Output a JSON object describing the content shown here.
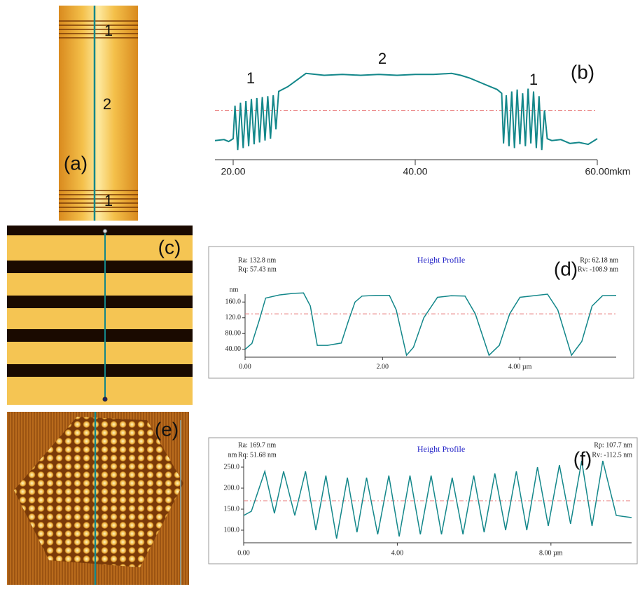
{
  "panels": {
    "a": {
      "label": "(a)",
      "annotations": [
        "1",
        "2",
        "1"
      ]
    },
    "c": {
      "label": "(c)"
    },
    "e": {
      "label": "(e)"
    }
  },
  "chart_data": [
    {
      "type": "line",
      "label": "(b)",
      "annotations": [
        "1",
        "2",
        "1"
      ],
      "xlabel": "mkm",
      "xlim": [
        18,
        60
      ],
      "ylim": [
        0,
        100
      ],
      "xticks": [
        {
          "value": 20,
          "label": "20.00"
        },
        {
          "value": 40,
          "label": "40.00"
        },
        {
          "value": 60,
          "label": "60.00"
        }
      ],
      "reference_line": 50,
      "color": "#13878a",
      "x": [
        18,
        19,
        19.5,
        20,
        20.2,
        20.5,
        20.8,
        21.1,
        21.4,
        21.7,
        22,
        22.3,
        22.6,
        22.9,
        23.2,
        23.5,
        23.8,
        24.1,
        24.4,
        24.7,
        25,
        26,
        27,
        28,
        30,
        32,
        34,
        36,
        38,
        40,
        42,
        44,
        45,
        46,
        47,
        48,
        49,
        49.5,
        49.7,
        50,
        50.3,
        50.6,
        50.9,
        51.2,
        51.5,
        51.8,
        52.1,
        52.4,
        52.7,
        53,
        53.3,
        53.6,
        53.9,
        54.2,
        54.5,
        55,
        56,
        57,
        58,
        59,
        59.5,
        60
      ],
      "values": [
        18,
        19,
        17,
        20,
        55,
        8,
        58,
        10,
        60,
        12,
        62,
        14,
        63,
        16,
        64,
        18,
        65,
        20,
        66,
        30,
        70,
        75,
        82,
        89,
        87,
        88,
        87,
        88,
        87,
        88,
        88,
        89,
        87,
        84,
        80,
        76,
        72,
        68,
        15,
        66,
        12,
        70,
        10,
        72,
        14,
        68,
        12,
        73,
        15,
        70,
        10,
        65,
        8,
        50,
        20,
        18,
        19,
        15,
        16,
        14,
        17,
        20
      ]
    },
    {
      "type": "line",
      "label": "(d)",
      "title": "Height Profile",
      "stats": [
        "Ra: 132.8 nm",
        "Rq: 57.43 nm",
        "Rp: 62.18 nm",
        "Rv: -108.9 nm"
      ],
      "ylabel": "nm",
      "xlim": [
        0,
        5.4
      ],
      "ylim": [
        20,
        180
      ],
      "xticks": [
        {
          "value": 0,
          "label": "0.00"
        },
        {
          "value": 2,
          "label": "2.00"
        },
        {
          "value": 4,
          "label": "4.00 µm"
        }
      ],
      "yticks": [
        {
          "value": 40,
          "label": "40.00"
        },
        {
          "value": 80,
          "label": "80.00"
        },
        {
          "value": 120,
          "label": "120.0"
        },
        {
          "value": 160,
          "label": "160.0"
        }
      ],
      "reference_line": 130,
      "color": "#13878a",
      "x": [
        0,
        0.1,
        0.2,
        0.3,
        0.5,
        0.7,
        0.85,
        0.95,
        1.05,
        1.2,
        1.4,
        1.5,
        1.6,
        1.7,
        1.9,
        2.1,
        2.2,
        2.35,
        2.45,
        2.6,
        2.8,
        3.0,
        3.2,
        3.35,
        3.55,
        3.7,
        3.85,
        4.0,
        4.2,
        4.4,
        4.55,
        4.75,
        4.9,
        5.05,
        5.2,
        5.4
      ],
      "values": [
        40,
        55,
        110,
        170,
        178,
        182,
        183,
        150,
        50,
        50,
        56,
        110,
        160,
        175,
        177,
        177,
        140,
        25,
        45,
        120,
        172,
        176,
        175,
        130,
        25,
        50,
        130,
        172,
        176,
        180,
        140,
        25,
        60,
        150,
        176,
        177
      ]
    },
    {
      "type": "line",
      "label": "(f)",
      "title": "Height Profile",
      "stats": [
        "Ra: 169.7 nm",
        "Rq: 51.68 nm",
        "Rp: 107.7 nm",
        "Rv: -112.5 nm"
      ],
      "ylabel": "nm",
      "xlim": [
        0,
        10.1
      ],
      "ylim": [
        70,
        270
      ],
      "xticks": [
        {
          "value": 0,
          "label": "0.00"
        },
        {
          "value": 4,
          "label": "4.00"
        },
        {
          "value": 8,
          "label": "8.00 µm"
        }
      ],
      "yticks": [
        {
          "value": 100,
          "label": "100.0"
        },
        {
          "value": 150,
          "label": "150.0"
        },
        {
          "value": 200,
          "label": "200.0"
        },
        {
          "value": 250,
          "label": "250.0"
        }
      ],
      "reference_line": 170,
      "color": "#13878a",
      "x": [
        0,
        0.2,
        0.55,
        0.8,
        1.04,
        1.33,
        1.61,
        1.88,
        2.14,
        2.42,
        2.7,
        2.95,
        3.2,
        3.49,
        3.78,
        4.05,
        4.33,
        4.6,
        4.88,
        5.15,
        5.43,
        5.71,
        5.99,
        6.26,
        6.54,
        6.82,
        7.1,
        7.37,
        7.65,
        7.93,
        8.22,
        8.51,
        8.8,
        9.07,
        9.35,
        9.7,
        10.1
      ],
      "values": [
        135,
        145,
        240,
        140,
        240,
        135,
        240,
        100,
        230,
        80,
        225,
        95,
        225,
        90,
        230,
        85,
        230,
        90,
        230,
        90,
        225,
        90,
        230,
        95,
        235,
        100,
        240,
        100,
        250,
        110,
        255,
        115,
        265,
        110,
        265,
        135,
        130
      ]
    }
  ]
}
